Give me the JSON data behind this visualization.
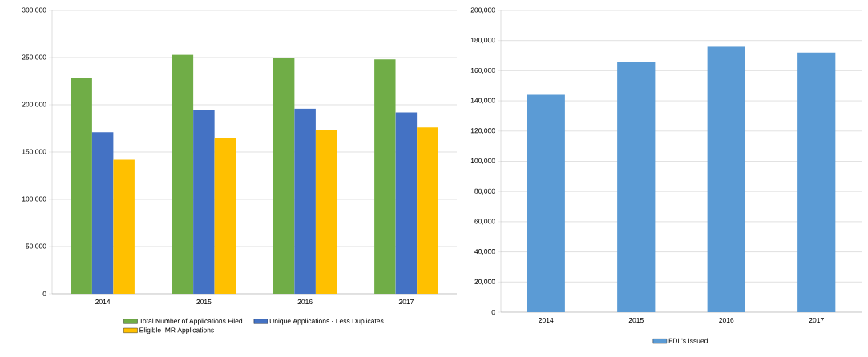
{
  "chart_data": [
    {
      "type": "bar",
      "categories": [
        "2014",
        "2015",
        "2016",
        "2017"
      ],
      "series": [
        {
          "name": "Total Number of Applications Filed",
          "color": "#70ad47",
          "values": [
            228000,
            253000,
            250000,
            248000
          ]
        },
        {
          "name": "Unique Applications - Less Duplicates",
          "color": "#4472c4",
          "values": [
            171000,
            195000,
            196000,
            192000
          ]
        },
        {
          "name": "Eligible IMR Applications",
          "color": "#ffc000",
          "values": [
            142000,
            165000,
            173000,
            176000
          ]
        }
      ],
      "ylim": [
        0,
        300000
      ],
      "yticks": [
        0,
        {
          "value": 50000,
          "label": "50,000"
        },
        {
          "value": 100000,
          "label": "100,000"
        },
        {
          "value": 150000,
          "label": "150,000"
        },
        {
          "value": 200000,
          "label": "200,000"
        },
        {
          "value": 250000,
          "label": "250,000"
        },
        {
          "value": 300000,
          "label": "300,000"
        }
      ],
      "grid": "y",
      "legend": "bottom"
    },
    {
      "type": "bar",
      "categories": [
        "2014",
        "2015",
        "2016",
        "2017"
      ],
      "series": [
        {
          "name": "FDL's Issued",
          "color": "#5b9bd5",
          "values": [
            144000,
            165500,
            176000,
            172000
          ]
        }
      ],
      "ylim": [
        0,
        200000
      ],
      "yticks": [
        0,
        {
          "value": 20000,
          "label": "20,000"
        },
        {
          "value": 40000,
          "label": "40,000"
        },
        {
          "value": 60000,
          "label": "60,000"
        },
        {
          "value": 80000,
          "label": "80,000"
        },
        {
          "value": 100000,
          "label": "100,000"
        },
        {
          "value": 120000,
          "label": "120,000"
        },
        {
          "value": 140000,
          "label": "140,000"
        },
        {
          "value": 160000,
          "label": "160,000"
        },
        {
          "value": 180000,
          "label": "180,000"
        },
        {
          "value": 200000,
          "label": "200,000"
        }
      ],
      "grid": "y",
      "legend": "bottom"
    }
  ]
}
